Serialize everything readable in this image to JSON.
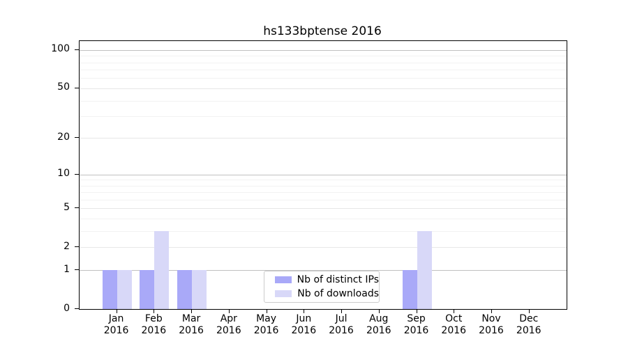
{
  "chart_data": {
    "type": "bar",
    "title": "hs133bptense 2016",
    "categories": [
      "Jan",
      "Feb",
      "Mar",
      "Apr",
      "May",
      "Jun",
      "Jul",
      "Aug",
      "Sep",
      "Oct",
      "Nov",
      "Dec"
    ],
    "year_label": "2016",
    "series": [
      {
        "name": "Nb of distinct IPs",
        "color": "#a9a9f8",
        "values": [
          1,
          1,
          1,
          0,
          0,
          0,
          0,
          0,
          1,
          0,
          0,
          0
        ]
      },
      {
        "name": "Nb of downloads",
        "color": "#d8d8f8",
        "values": [
          1,
          3,
          1,
          0,
          0,
          0,
          0,
          0,
          3,
          0,
          0,
          0
        ]
      }
    ],
    "xlabel": "",
    "ylabel": "",
    "y_scale": "log10(1+v)",
    "y_ticks": [
      0,
      1,
      2,
      5,
      10,
      20,
      50,
      100
    ],
    "y_minor_gridlines": [
      3,
      4,
      6,
      7,
      8,
      9,
      30,
      40,
      60,
      70,
      80,
      90
    ],
    "ylim": [
      0,
      117
    ],
    "grid": true,
    "legend_position": "lower center"
  }
}
